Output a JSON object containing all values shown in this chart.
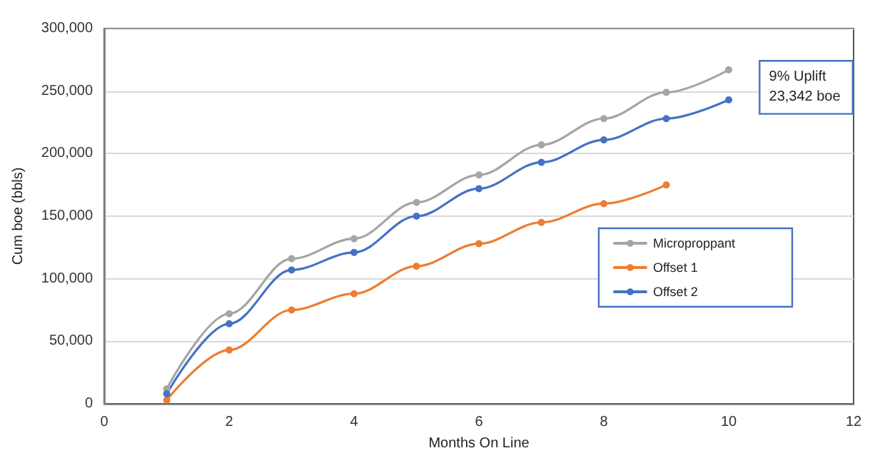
{
  "chart_data": {
    "type": "line",
    "xlabel": "Months On Line",
    "ylabel": "Cum boe (bbls)",
    "x": [
      1,
      2,
      3,
      4,
      5,
      6,
      7,
      8,
      9,
      10
    ],
    "series": [
      {
        "name": "Microproppant",
        "color": "#a5a5a5",
        "values": [
          12000,
          72000,
          116000,
          132000,
          161000,
          183000,
          207000,
          228000,
          249000,
          267000
        ]
      },
      {
        "name": "Offset 1",
        "color": "#ed7d31",
        "values": [
          3000,
          43000,
          75000,
          88000,
          110000,
          128000,
          145000,
          160000,
          175000,
          null
        ]
      },
      {
        "name": "Offset 2",
        "color": "#4472c4",
        "values": [
          8000,
          64000,
          107000,
          121000,
          150000,
          172000,
          193000,
          211000,
          228000,
          243000
        ]
      }
    ],
    "xlim": [
      0,
      12
    ],
    "xticks": [
      0,
      2,
      4,
      6,
      8,
      10,
      12
    ],
    "ylim": [
      0,
      300000
    ],
    "yticks": [
      0,
      {
        "value": 50000,
        "label": "50,000"
      },
      {
        "value": 100000,
        "label": "100,000"
      },
      {
        "value": 150000,
        "label": "150,000"
      },
      {
        "value": 200000,
        "label": "200,000"
      },
      {
        "value": 250000,
        "label": "250,000"
      },
      {
        "value": 300000,
        "label": "300,000"
      }
    ],
    "grid": "y",
    "legend": "right",
    "marker": "circle",
    "line_style": "solid",
    "annotations": [
      "9% Uplift\n23,342 boe"
    ]
  }
}
